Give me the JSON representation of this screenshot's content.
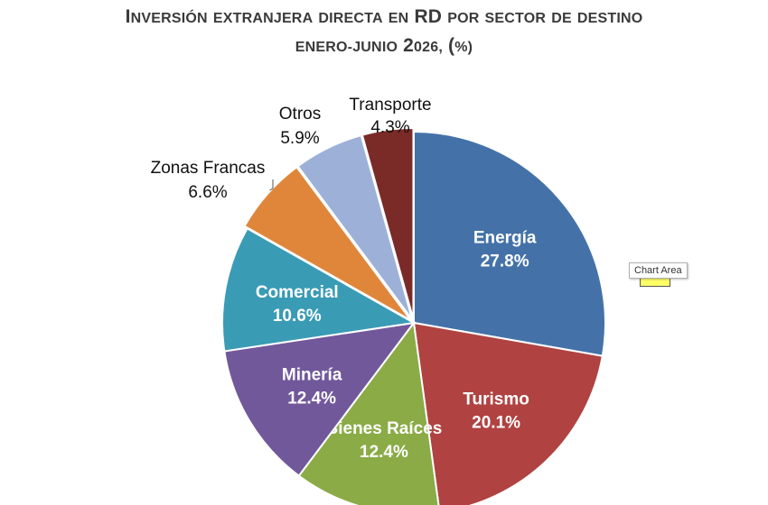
{
  "title": {
    "line1": "Inversión extranjera directa en RD por sector de destino",
    "line2": "enero-junio 2026, (%)"
  },
  "tooltip": {
    "label": "Chart Area"
  },
  "chart_data": {
    "type": "pie",
    "title": "Inversión extranjera directa en RD por sector de destino enero-junio 2026, (%)",
    "start_angle": "12 o'clock",
    "direction": "clockwise",
    "label_style": "inside for large slices (white bold), outside with leader line for small slices",
    "slices": [
      {
        "label": "Energía",
        "value": 27.8,
        "display": "27.8%",
        "color": "#4472a8",
        "label_position": "inside"
      },
      {
        "label": "Turismo",
        "value": 20.1,
        "display": "20.1%",
        "color": "#b04241",
        "label_position": "inside"
      },
      {
        "label": "Bienes Raíces",
        "value": 12.4,
        "display": "12.4%",
        "color": "#8aab46",
        "label_position": "inside"
      },
      {
        "label": "Minería",
        "value": 12.4,
        "display": "12.4%",
        "color": "#71589a",
        "label_position": "inside"
      },
      {
        "label": "Comercial",
        "value": 10.6,
        "display": "10.6%",
        "color": "#3a9bb5",
        "label_position": "inside"
      },
      {
        "label": "Zonas Francas",
        "value": 6.6,
        "display": "6.6%",
        "color": "#e0863b",
        "label_position": "outside"
      },
      {
        "label": "Otros",
        "value": 5.9,
        "display": "5.9%",
        "color": "#9db1d8",
        "label_position": "outside"
      },
      {
        "label": "Transporte",
        "value": 4.3,
        "display": "4.3%",
        "color": "#7a2a27",
        "label_position": "outside"
      }
    ]
  }
}
